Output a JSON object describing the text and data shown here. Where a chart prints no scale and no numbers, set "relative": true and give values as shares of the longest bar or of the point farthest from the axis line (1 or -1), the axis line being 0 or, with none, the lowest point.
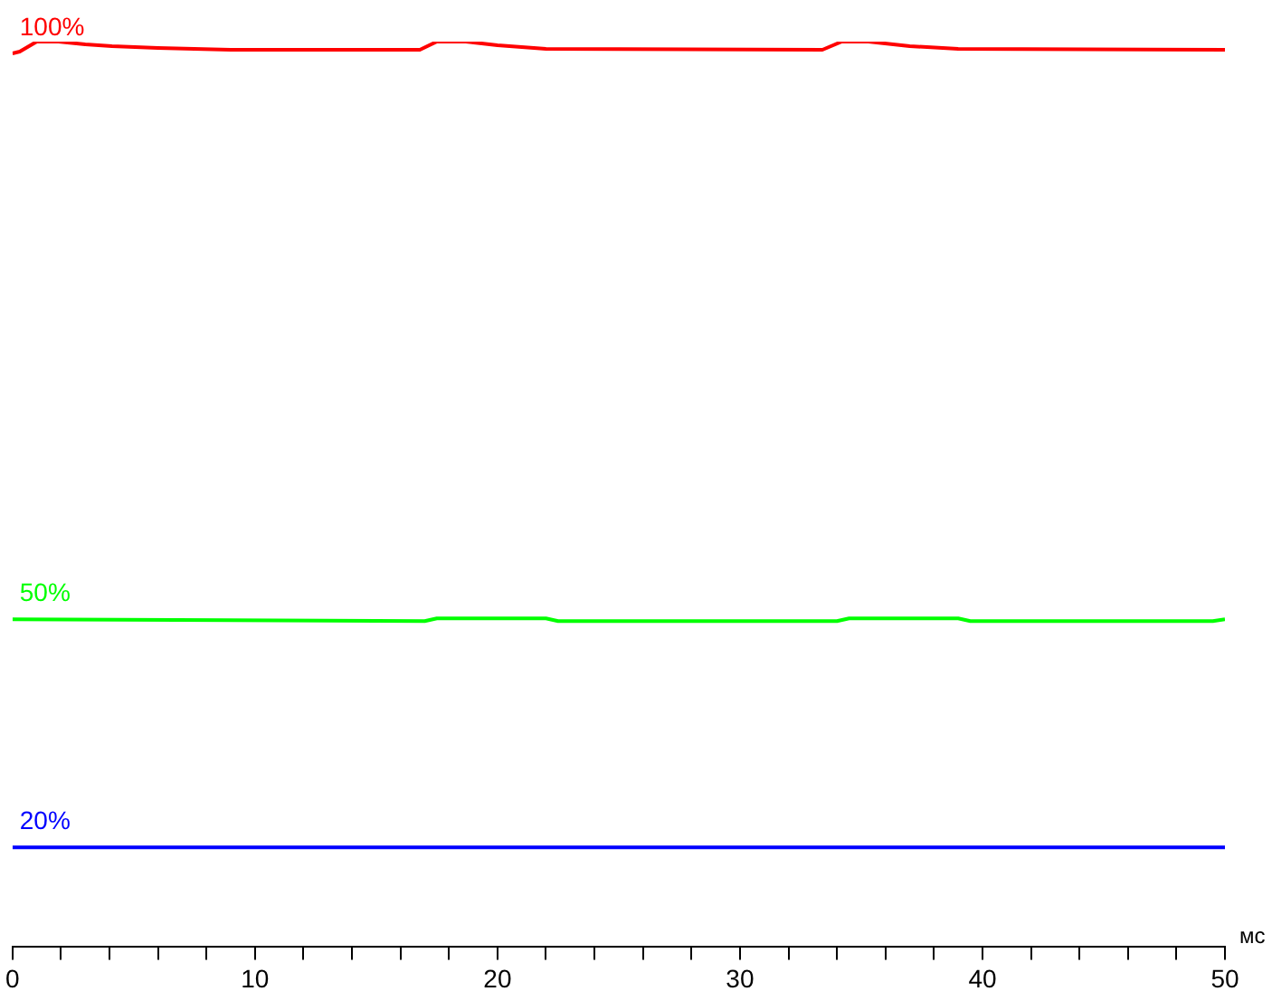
{
  "chart_data": {
    "type": "line",
    "xlabel": "мс",
    "relative": true,
    "xlim": [
      0,
      50
    ],
    "xticks": [
      0,
      {
        "value": 2,
        "label": null
      },
      {
        "value": 4,
        "label": null
      },
      {
        "value": 6,
        "label": null
      },
      {
        "value": 8,
        "label": null
      },
      10,
      {
        "value": 12,
        "label": null
      },
      {
        "value": 14,
        "label": null
      },
      {
        "value": 16,
        "label": null
      },
      {
        "value": 18,
        "label": null
      },
      20,
      {
        "value": 22,
        "label": null
      },
      {
        "value": 24,
        "label": null
      },
      {
        "value": 26,
        "label": null
      },
      {
        "value": 28,
        "label": null
      },
      30,
      {
        "value": 32,
        "label": null
      },
      {
        "value": 34,
        "label": null
      },
      {
        "value": 36,
        "label": null
      },
      {
        "value": 38,
        "label": null
      },
      40,
      {
        "value": 42,
        "label": null
      },
      {
        "value": 44,
        "label": null
      },
      {
        "value": 46,
        "label": null
      },
      {
        "value": 48,
        "label": null
      },
      50
    ],
    "tick_labels": "x",
    "grid": false,
    "legend": false,
    "marker": "none",
    "line_style": "solid",
    "series": [
      {
        "name": "100%",
        "color": "#ff0000",
        "x": [
          0,
          0.3,
          1,
          1.9,
          3,
          4.1,
          6,
          9,
          16.8,
          17.5,
          18.7,
          20,
          22,
          33.4,
          34.2,
          35.3,
          37,
          39,
          50
        ],
        "values": [
          0.987,
          0.989,
          1,
          1,
          0.997,
          0.995,
          0.993,
          0.991,
          0.991,
          1,
          1,
          0.996,
          0.992,
          0.991,
          1,
          1,
          0.995,
          0.992,
          0.991
        ]
      },
      {
        "name": "50%",
        "color": "#00ff00",
        "x": [
          0,
          17,
          17.5,
          22,
          22.5,
          34,
          34.5,
          39,
          39.5,
          49.5,
          50
        ],
        "values": [
          0.362,
          0.36,
          0.363,
          0.363,
          0.36,
          0.36,
          0.363,
          0.363,
          0.36,
          0.36,
          0.362
        ]
      },
      {
        "name": "20%",
        "color": "#0000ff",
        "x": [
          0,
          50
        ],
        "values": [
          0.11,
          0.11
        ]
      }
    ]
  }
}
